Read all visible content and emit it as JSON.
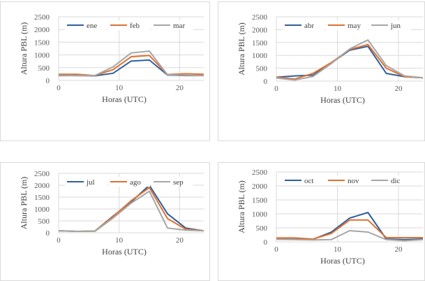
{
  "chart_data": [
    {
      "type": "line",
      "xlabel": "Horas (UTC)",
      "ylabel": "Altura PBL (m)",
      "xlim": [
        0,
        24
      ],
      "ylim": [
        0,
        2500
      ],
      "xticks": [
        0,
        10,
        20
      ],
      "yticks": [
        0,
        500,
        1000,
        1500,
        2000,
        2500
      ],
      "grid": true,
      "legend": "top",
      "x": [
        0,
        3,
        6,
        9,
        12,
        15,
        18,
        21,
        24
      ],
      "series": [
        {
          "name": "ene",
          "color": "#2e5f9e",
          "values": [
            190,
            190,
            180,
            280,
            760,
            800,
            210,
            190,
            190
          ]
        },
        {
          "name": "feb",
          "color": "#e0702f",
          "values": [
            240,
            240,
            190,
            420,
            930,
            980,
            230,
            260,
            240
          ]
        },
        {
          "name": "mar",
          "color": "#a6a6a6",
          "values": [
            200,
            190,
            190,
            530,
            1080,
            1150,
            220,
            200,
            190
          ]
        }
      ]
    },
    {
      "type": "line",
      "xlabel": "Horas (UTC)",
      "ylabel": "Altura PBL (m)",
      "xlim": [
        0,
        24
      ],
      "ylim": [
        0,
        2500
      ],
      "xticks": [
        0,
        10,
        20
      ],
      "yticks": [
        0,
        500,
        1000,
        1500,
        2000,
        2500
      ],
      "grid": true,
      "legend": "top",
      "x": [
        0,
        3,
        6,
        9,
        12,
        15,
        18,
        21,
        24
      ],
      "series": [
        {
          "name": "abr",
          "color": "#2e5f9e",
          "values": [
            150,
            200,
            230,
            700,
            1200,
            1350,
            300,
            170,
            130
          ]
        },
        {
          "name": "may",
          "color": "#e0702f",
          "values": [
            150,
            80,
            300,
            720,
            1230,
            1420,
            500,
            170,
            130
          ]
        },
        {
          "name": "jun",
          "color": "#a6a6a6",
          "values": [
            120,
            40,
            180,
            680,
            1250,
            1600,
            600,
            200,
            130
          ]
        }
      ]
    },
    {
      "type": "line",
      "xlabel": "Horas (UTC)",
      "ylabel": "Altura PBL (m)",
      "xlim": [
        0,
        24
      ],
      "ylim": [
        0,
        2500
      ],
      "xticks": [
        0,
        10,
        20
      ],
      "yticks": [
        0,
        500,
        1000,
        1500,
        2000,
        2500
      ],
      "grid": true,
      "legend": "top",
      "x": [
        0,
        3,
        6,
        9,
        12,
        15,
        18,
        21,
        24
      ],
      "series": [
        {
          "name": "jul",
          "color": "#2e5f9e",
          "values": [
            80,
            60,
            70,
            700,
            1300,
            2000,
            800,
            200,
            80
          ]
        },
        {
          "name": "ago",
          "color": "#e0702f",
          "values": [
            90,
            60,
            70,
            680,
            1350,
            1900,
            600,
            150,
            90
          ]
        },
        {
          "name": "sep",
          "color": "#a6a6a6",
          "values": [
            80,
            60,
            60,
            620,
            1250,
            1750,
            200,
            110,
            80
          ]
        }
      ]
    },
    {
      "type": "line",
      "xlabel": "Horas (UTC)",
      "ylabel": "Altura PBL (m)",
      "xlim": [
        0,
        24
      ],
      "ylim": [
        0,
        2500
      ],
      "xticks": [
        0,
        10,
        20
      ],
      "yticks": [
        0,
        500,
        1000,
        1500,
        2000,
        2500
      ],
      "grid": true,
      "legend": "top",
      "x": [
        0,
        3,
        6,
        9,
        12,
        15,
        18,
        21,
        24
      ],
      "series": [
        {
          "name": "oct",
          "color": "#2e5f9e",
          "values": [
            130,
            130,
            90,
            350,
            850,
            1050,
            100,
            80,
            100
          ]
        },
        {
          "name": "nov",
          "color": "#e0702f",
          "values": [
            140,
            140,
            100,
            300,
            780,
            780,
            150,
            150,
            150
          ]
        },
        {
          "name": "dic",
          "color": "#a6a6a6",
          "values": [
            90,
            80,
            70,
            80,
            400,
            350,
            80,
            40,
            80
          ]
        }
      ]
    }
  ]
}
